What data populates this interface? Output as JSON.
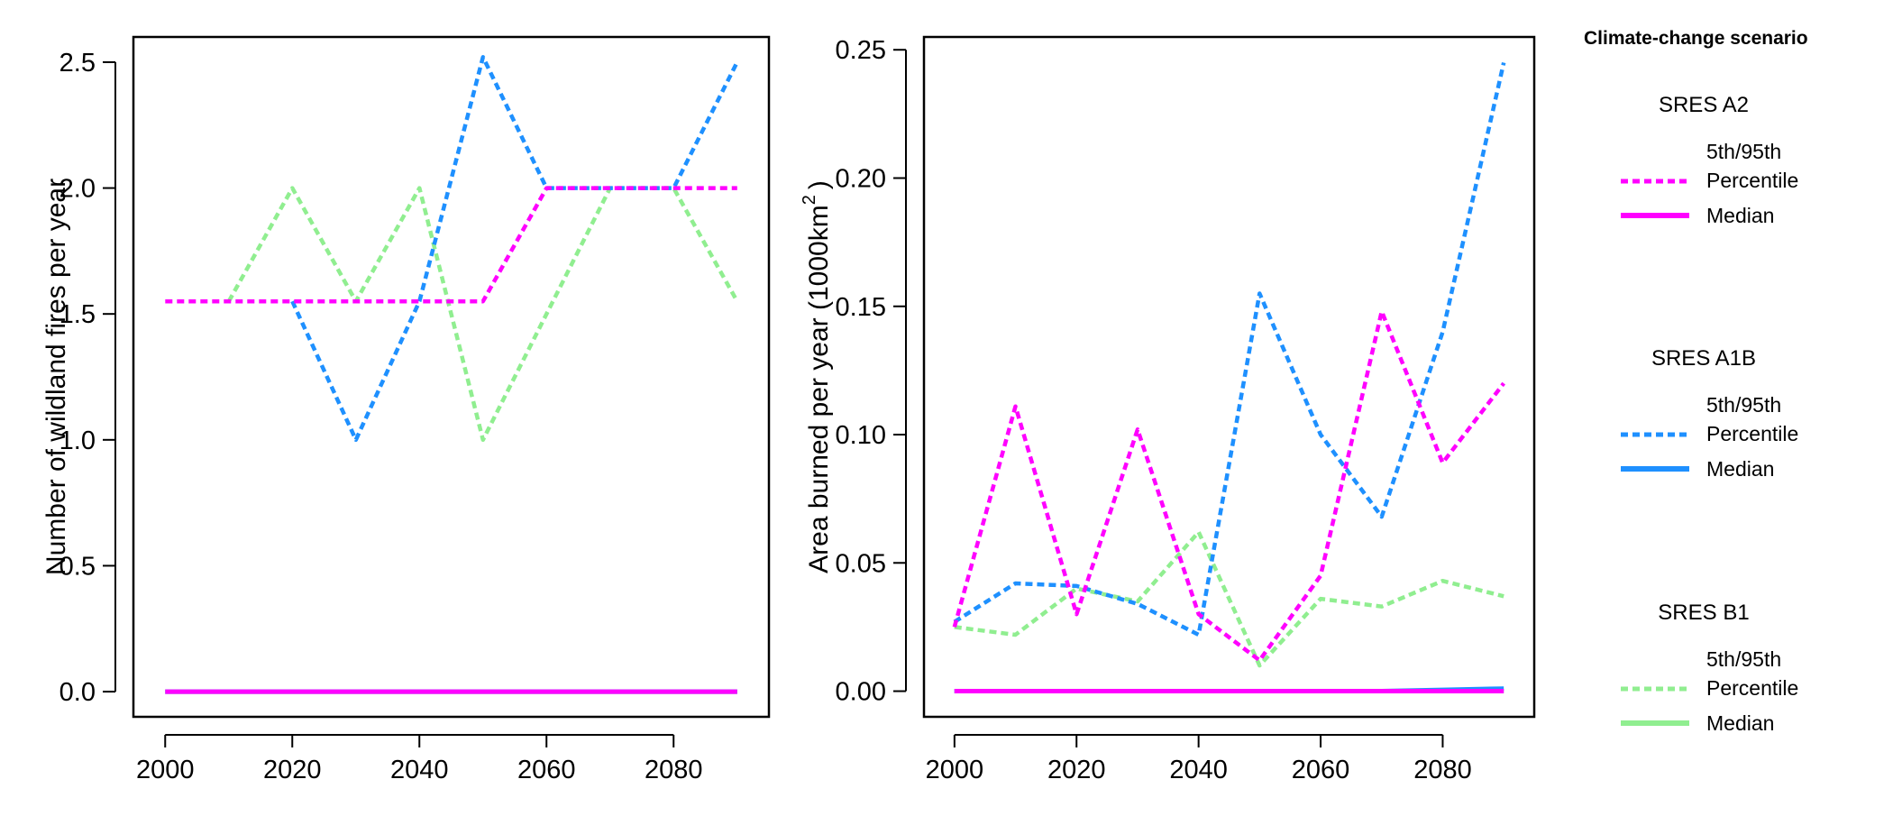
{
  "colors": {
    "A2": "#ff00ff",
    "A1B": "#1e90ff",
    "B1": "#90ee90"
  },
  "legend": {
    "title": "Climate-change scenario",
    "groups": [
      {
        "scenario": "SRES A2",
        "color_key": "A2",
        "pct_label_1": "5th/95th",
        "pct_label_2": "Percentile",
        "median_label": "Median"
      },
      {
        "scenario": "SRES A1B",
        "color_key": "A1B",
        "pct_label_1": "5th/95th",
        "pct_label_2": "Percentile",
        "median_label": "Median"
      },
      {
        "scenario": "SRES B1",
        "color_key": "B1",
        "pct_label_1": "5th/95th",
        "pct_label_2": "Percentile",
        "median_label": "Median"
      }
    ]
  },
  "chart_data": [
    {
      "type": "line",
      "ylabel": "Number of wildland fires per year",
      "xlim": [
        1995,
        2095
      ],
      "ylim": [
        -0.1,
        2.6
      ],
      "xticks": [
        2000,
        2020,
        2040,
        2060,
        2080
      ],
      "yticks": [
        0.0,
        0.5,
        1.0,
        1.5,
        2.0,
        2.5
      ],
      "ytick_labels": [
        "0.0",
        "0.5",
        "1.0",
        "1.5",
        "2.0",
        "2.5"
      ],
      "grid": false,
      "series": [
        {
          "color_key": "B1",
          "style": "dotted",
          "x": [
            2010,
            2020,
            2030,
            2040,
            2050,
            2060,
            2070,
            2080,
            2090
          ],
          "y": [
            1.55,
            2.0,
            1.55,
            2.0,
            1.0,
            1.5,
            2.0,
            2.0,
            1.55
          ]
        },
        {
          "color_key": "A1B",
          "style": "dotted",
          "x": [
            2020,
            2030,
            2040,
            2050,
            2060,
            2070,
            2080,
            2090
          ],
          "y": [
            1.55,
            1.0,
            1.55,
            2.52,
            2.0,
            2.0,
            2.0,
            2.5
          ]
        },
        {
          "color_key": "A2",
          "style": "dotted",
          "x": [
            2000,
            2010,
            2020,
            2030,
            2040,
            2050,
            2060,
            2070,
            2080,
            2090
          ],
          "y": [
            1.55,
            1.55,
            1.55,
            1.55,
            1.55,
            1.55,
            2.0,
            2.0,
            2.0,
            2.0
          ]
        },
        {
          "color_key": "B1",
          "style": "solid",
          "x": [
            2000,
            2090
          ],
          "y": [
            0.0,
            0.0
          ]
        },
        {
          "color_key": "A1B",
          "style": "solid",
          "x": [
            2000,
            2090
          ],
          "y": [
            0.0,
            0.0
          ]
        },
        {
          "color_key": "A2",
          "style": "solid",
          "x": [
            2000,
            2090
          ],
          "y": [
            0.0,
            0.0
          ]
        }
      ]
    },
    {
      "type": "line",
      "ylabel": "Area burned per year (1000km",
      "ylabel_sup": "2",
      "ylabel_end": ")",
      "xlim": [
        1995,
        2095
      ],
      "ylim": [
        -0.01,
        0.255
      ],
      "xticks": [
        2000,
        2020,
        2040,
        2060,
        2080
      ],
      "yticks": [
        0.0,
        0.05,
        0.1,
        0.15,
        0.2,
        0.25
      ],
      "ytick_labels": [
        "0.00",
        "0.05",
        "0.10",
        "0.15",
        "0.20",
        "0.25"
      ],
      "grid": false,
      "series": [
        {
          "color_key": "B1",
          "style": "dotted",
          "x": [
            2000,
            2010,
            2020,
            2030,
            2040,
            2050,
            2060,
            2070,
            2080,
            2090
          ],
          "y": [
            0.025,
            0.022,
            0.04,
            0.035,
            0.062,
            0.01,
            0.036,
            0.033,
            0.043,
            0.037
          ]
        },
        {
          "color_key": "A1B",
          "style": "dotted",
          "x": [
            2000,
            2010,
            2020,
            2030,
            2040,
            2050,
            2060,
            2070,
            2080,
            2090
          ],
          "y": [
            0.027,
            0.042,
            0.041,
            0.034,
            0.022,
            0.155,
            0.1,
            0.068,
            0.14,
            0.245
          ]
        },
        {
          "color_key": "A2",
          "style": "dotted",
          "x": [
            2000,
            2010,
            2020,
            2030,
            2040,
            2050,
            2060,
            2070,
            2080,
            2090
          ],
          "y": [
            0.025,
            0.111,
            0.03,
            0.102,
            0.03,
            0.012,
            0.045,
            0.148,
            0.089,
            0.12
          ]
        },
        {
          "color_key": "B1",
          "style": "solid",
          "x": [
            2000,
            2090
          ],
          "y": [
            0.0,
            0.0
          ]
        },
        {
          "color_key": "A1B",
          "style": "solid",
          "x": [
            2000,
            2070,
            2080,
            2090
          ],
          "y": [
            0.0,
            0.0,
            0.0005,
            0.001
          ]
        },
        {
          "color_key": "A2",
          "style": "solid",
          "x": [
            2000,
            2090
          ],
          "y": [
            0.0,
            0.0
          ]
        }
      ]
    }
  ]
}
